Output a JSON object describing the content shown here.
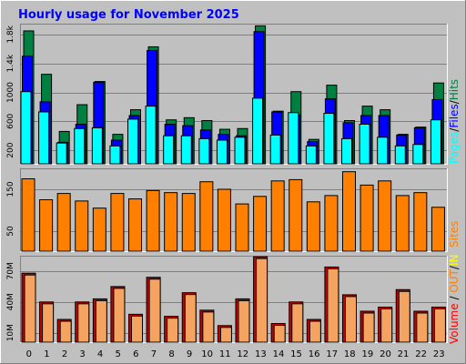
{
  "title": "Hourly usage for November 2025",
  "colors": {
    "background": "#c0c0c0",
    "panel": "#c0c0c0",
    "title": "#0000ff",
    "hits": "#008040",
    "files": "#0000ff",
    "pages": "#00ffff",
    "sites": "#ff8000",
    "volume": "#ff0000",
    "in": "#ffff00",
    "out": "#ff8000"
  },
  "legend": {
    "pages": "Pages",
    "files": "Files",
    "hits": "Hits",
    "sites": "Sites",
    "volume": "Volume",
    "in": "IN",
    "out": "OUT",
    "sep": "/"
  },
  "chart_data": [
    {
      "type": "bar",
      "categories": [
        "0",
        "1",
        "2",
        "3",
        "4",
        "5",
        "6",
        "7",
        "8",
        "9",
        "10",
        "11",
        "12",
        "13",
        "14",
        "15",
        "16",
        "17",
        "18",
        "19",
        "20",
        "21",
        "22",
        "23"
      ],
      "ylim": [
        0,
        1950
      ],
      "yticks": [
        200,
        600,
        1000,
        1400,
        1800
      ],
      "ytick_labels": [
        "200",
        "600",
        "1000",
        "1.4k",
        "1.8k"
      ],
      "series": [
        {
          "name": "Hits",
          "values": [
            1850,
            1250,
            460,
            830,
            1150,
            420,
            760,
            1630,
            620,
            650,
            610,
            490,
            500,
            1920,
            740,
            1010,
            350,
            1100,
            610,
            810,
            760,
            420,
            520,
            1130
          ]
        },
        {
          "name": "Files",
          "values": [
            1500,
            870,
            310,
            560,
            1140,
            340,
            680,
            1580,
            560,
            540,
            480,
            420,
            400,
            1840,
            730,
            690,
            320,
            910,
            580,
            680,
            680,
            410,
            510,
            900
          ]
        },
        {
          "name": "Pages",
          "values": [
            1010,
            730,
            300,
            500,
            510,
            260,
            630,
            810,
            400,
            400,
            360,
            340,
            380,
            920,
            410,
            720,
            260,
            710,
            360,
            560,
            380,
            260,
            280,
            620
          ]
        }
      ]
    },
    {
      "type": "bar",
      "categories": [
        "0",
        "1",
        "2",
        "3",
        "4",
        "5",
        "6",
        "7",
        "8",
        "9",
        "10",
        "11",
        "12",
        "13",
        "14",
        "15",
        "16",
        "17",
        "18",
        "19",
        "20",
        "21",
        "22",
        "23"
      ],
      "ylim": [
        0,
        200
      ],
      "yticks": [
        50,
        150
      ],
      "ytick_labels": [
        "50",
        "150"
      ],
      "series": [
        {
          "name": "Sites",
          "values": [
            175,
            125,
            140,
            122,
            105,
            140,
            127,
            147,
            142,
            140,
            168,
            150,
            115,
            133,
            170,
            173,
            120,
            135,
            192,
            160,
            170,
            135,
            142,
            107
          ]
        }
      ]
    },
    {
      "type": "bar",
      "categories": [
        "0",
        "1",
        "2",
        "3",
        "4",
        "5",
        "6",
        "7",
        "8",
        "9",
        "10",
        "11",
        "12",
        "13",
        "14",
        "15",
        "16",
        "17",
        "18",
        "19",
        "20",
        "21",
        "22",
        "23"
      ],
      "ylim": [
        0,
        85
      ],
      "yticks": [
        10,
        40,
        70
      ],
      "ytick_labels": [
        "10M",
        "40M",
        "70M"
      ],
      "series": [
        {
          "name": "Volume",
          "values": [
            68,
            40,
            23,
            40,
            43,
            55,
            28,
            64,
            26,
            49,
            32,
            17,
            43,
            84,
            19,
            40,
            23,
            74,
            47,
            31,
            35,
            52,
            31,
            35
          ]
        }
      ]
    }
  ],
  "xaxis_labels": [
    "0",
    "1",
    "2",
    "3",
    "4",
    "5",
    "6",
    "7",
    "8",
    "9",
    "10",
    "11",
    "12",
    "13",
    "14",
    "15",
    "16",
    "17",
    "18",
    "19",
    "20",
    "21",
    "22",
    "23"
  ]
}
